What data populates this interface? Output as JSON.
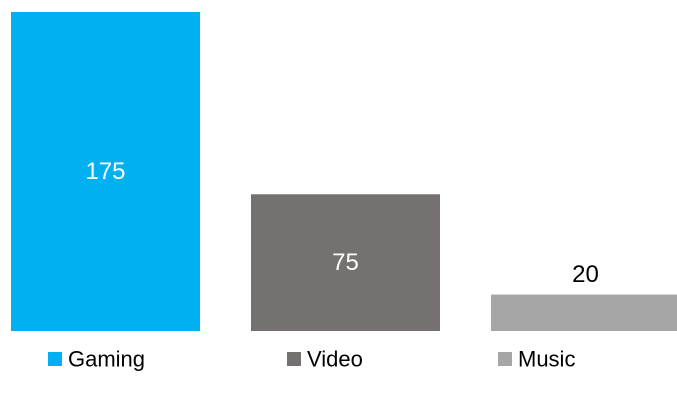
{
  "chart_data": {
    "type": "bar",
    "categories": [
      "Gaming",
      "Video",
      "Music"
    ],
    "values": [
      175,
      75,
      20
    ],
    "value_labels": [
      "175",
      "75",
      "20"
    ],
    "colors": [
      "#00B0F0",
      "#767171",
      "#A6A6A6"
    ],
    "label_colors": [
      "#FFFFFF",
      "#FFFFFF",
      "#000000"
    ],
    "label_inside": [
      true,
      true,
      false
    ],
    "ylim": [
      0,
      175
    ],
    "grid": false,
    "legend_position": "bottom",
    "title": "",
    "xlabel": "",
    "ylabel": ""
  }
}
